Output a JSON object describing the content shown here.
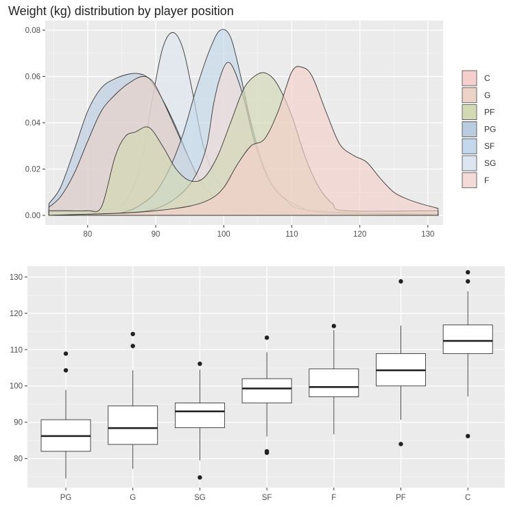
{
  "chart_data": [
    {
      "type": "density",
      "title": "Weight (kg) distribution by player position",
      "xlabel": "",
      "ylabel": "",
      "xlim": [
        74,
        132
      ],
      "ylim": [
        0,
        0.08
      ],
      "x_ticks": [
        80,
        90,
        100,
        110,
        120,
        130
      ],
      "y_ticks": [
        0.0,
        0.02,
        0.04,
        0.06,
        0.08
      ],
      "y_tick_labels": [
        "0.00",
        "0.02",
        "0.04",
        "0.06",
        "0.08"
      ],
      "grid": true,
      "legend_position": "right",
      "legend": [
        {
          "label": "C",
          "color": "#F4CFCB"
        },
        {
          "label": "G",
          "color": "#EBD3C7"
        },
        {
          "label": "PF",
          "color": "#D3D9B3"
        },
        {
          "label": "PG",
          "color": "#BACDE0"
        },
        {
          "label": "SF",
          "color": "#C3D8EA"
        },
        {
          "label": "SG",
          "color": "#DDE6F0"
        },
        {
          "label": "F",
          "color": "#F3DBD8"
        }
      ],
      "series": [
        {
          "label": "SG",
          "fill": "#DDE6F0",
          "points": [
            [
              74.3,
              0.0015
            ],
            [
              80,
              0.002
            ],
            [
              84,
              0.003
            ],
            [
              86,
              0.008
            ],
            [
              88,
              0.025
            ],
            [
              89.5,
              0.05
            ],
            [
              91,
              0.072
            ],
            [
              92.5,
              0.079
            ],
            [
              94,
              0.072
            ],
            [
              95.5,
              0.052
            ],
            [
              97,
              0.03
            ],
            [
              99,
              0.015
            ],
            [
              101,
              0.008
            ],
            [
              103,
              0.004
            ],
            [
              106,
              0.0015
            ],
            [
              131.5,
              0.0005
            ]
          ]
        },
        {
          "label": "PG",
          "fill": "#BACDE0",
          "points": [
            [
              74.3,
              0.005
            ],
            [
              76,
              0.012
            ],
            [
              78,
              0.028
            ],
            [
              80,
              0.045
            ],
            [
              82,
              0.055
            ],
            [
              84,
              0.059
            ],
            [
              86,
              0.061
            ],
            [
              87.5,
              0.0612
            ],
            [
              89,
              0.059
            ],
            [
              91,
              0.05
            ],
            [
              93,
              0.038
            ],
            [
              95,
              0.024
            ],
            [
              97,
              0.012
            ],
            [
              100,
              0.004
            ],
            [
              103,
              0.0015
            ],
            [
              131.5,
              0.0005
            ]
          ]
        },
        {
          "label": "G",
          "fill": "#EBD3C7",
          "points": [
            [
              74.3,
              0.0035
            ],
            [
              76,
              0.008
            ],
            [
              78,
              0.018
            ],
            [
              80,
              0.032
            ],
            [
              82,
              0.045
            ],
            [
              84,
              0.052
            ],
            [
              86,
              0.057
            ],
            [
              88,
              0.06
            ],
            [
              89.5,
              0.058
            ],
            [
              91,
              0.05
            ],
            [
              93,
              0.037
            ],
            [
              95,
              0.024
            ],
            [
              97,
              0.013
            ],
            [
              100,
              0.005
            ],
            [
              103,
              0.002
            ],
            [
              131.5,
              0.0005
            ]
          ]
        },
        {
          "label": "SF",
          "fill": "#C3D8EA",
          "points": [
            [
              74.3,
              0
            ],
            [
              83,
              0.0005
            ],
            [
              86,
              0.002
            ],
            [
              88,
              0.005
            ],
            [
              90,
              0.01
            ],
            [
              92,
              0.02
            ],
            [
              94,
              0.035
            ],
            [
              96,
              0.055
            ],
            [
              98,
              0.072
            ],
            [
              99.5,
              0.08
            ],
            [
              101,
              0.077
            ],
            [
              102.5,
              0.06
            ],
            [
              104,
              0.04
            ],
            [
              106,
              0.02
            ],
            [
              108,
              0.01
            ],
            [
              111,
              0.004
            ],
            [
              115,
              0.001
            ],
            [
              131.5,
              0
            ]
          ]
        },
        {
          "label": "F",
          "fill": "#F3DBD8",
          "points": [
            [
              74.3,
              0
            ],
            [
              85,
              0.0008
            ],
            [
              88,
              0.0015
            ],
            [
              91,
              0.004
            ],
            [
              94,
              0.01
            ],
            [
              96,
              0.018
            ],
            [
              97.5,
              0.03
            ],
            [
              98.5,
              0.048
            ],
            [
              99.5,
              0.06
            ],
            [
              100.5,
              0.066
            ],
            [
              101.5,
              0.063
            ],
            [
              103,
              0.05
            ],
            [
              104.5,
              0.032
            ],
            [
              106.5,
              0.016
            ],
            [
              109,
              0.007
            ],
            [
              113,
              0.002
            ],
            [
              131.5,
              0
            ]
          ]
        },
        {
          "label": "PF",
          "fill": "#D3D9B3",
          "points": [
            [
              74.3,
              0.002
            ],
            [
              77,
              0.002
            ],
            [
              80,
              0.002
            ],
            [
              82,
              0.0035
            ],
            [
              84,
              0.025
            ],
            [
              85.5,
              0.034
            ],
            [
              87,
              0.036
            ],
            [
              89,
              0.038
            ],
            [
              91,
              0.03
            ],
            [
              93,
              0.02
            ],
            [
              95,
              0.015
            ],
            [
              97,
              0.016
            ],
            [
              99,
              0.025
            ],
            [
              101,
              0.04
            ],
            [
              103,
              0.055
            ],
            [
              105,
              0.061
            ],
            [
              106.5,
              0.061
            ],
            [
              108,
              0.056
            ],
            [
              110,
              0.043
            ],
            [
              112,
              0.025
            ],
            [
              114,
              0.012
            ],
            [
              116,
              0.005
            ],
            [
              118,
              0.002
            ],
            [
              131.5,
              0.002
            ]
          ]
        },
        {
          "label": "C",
          "fill": "#F4CFCB",
          "points": [
            [
              74.3,
              0
            ],
            [
              80,
              0.0005
            ],
            [
              85,
              0.001
            ],
            [
              90,
              0.002
            ],
            [
              95,
              0.004
            ],
            [
              98,
              0.007
            ],
            [
              100,
              0.012
            ],
            [
              102,
              0.022
            ],
            [
              104,
              0.03
            ],
            [
              106,
              0.033
            ],
            [
              108,
              0.045
            ],
            [
              110,
              0.062
            ],
            [
              111.5,
              0.064
            ],
            [
              113,
              0.06
            ],
            [
              115,
              0.045
            ],
            [
              117,
              0.031
            ],
            [
              119,
              0.026
            ],
            [
              121,
              0.023
            ],
            [
              123,
              0.016
            ],
            [
              125,
              0.01
            ],
            [
              127,
              0.007
            ],
            [
              129,
              0.005
            ],
            [
              131.5,
              0.003
            ]
          ]
        }
      ]
    },
    {
      "type": "boxplot",
      "title": "",
      "xlabel": "",
      "ylabel": "",
      "ylim": [
        72,
        133
      ],
      "grid": true,
      "categories": [
        "PG",
        "G",
        "SG",
        "SF",
        "F",
        "PF",
        "C"
      ],
      "y_ticks": [
        80,
        90,
        100,
        110,
        120,
        130
      ],
      "y_tick_labels": [
        "80",
        "90",
        "100",
        "110",
        "120",
        "130"
      ],
      "boxes": [
        {
          "category": "PG",
          "min": 74.5,
          "q1": 82,
          "median": 86.2,
          "q3": 90.7,
          "max": 98.9,
          "outliers": [
            104.3,
            108.9
          ]
        },
        {
          "category": "G",
          "min": 77.2,
          "q1": 83.9,
          "median": 88.4,
          "q3": 94.5,
          "max": 104.3,
          "outliers": [
            111,
            114.3
          ]
        },
        {
          "category": "SG",
          "min": 79.5,
          "q1": 88.5,
          "median": 93,
          "q3": 95.3,
          "max": 104.5,
          "outliers": [
            74.8,
            106.1
          ]
        },
        {
          "category": "SF",
          "min": 86.1,
          "q1": 95.3,
          "median": 99.3,
          "q3": 102,
          "max": 109.3,
          "outliers": [
            81.6,
            82,
            113.3
          ]
        },
        {
          "category": "F",
          "min": 86.7,
          "q1": 97,
          "median": 99.7,
          "q3": 104.7,
          "max": 115.4,
          "outliers": [
            116.5
          ]
        },
        {
          "category": "PF",
          "min": 90.7,
          "q1": 100,
          "median": 104.3,
          "q3": 108.9,
          "max": 116.6,
          "outliers": [
            84,
            128.8
          ]
        },
        {
          "category": "C",
          "min": 97.1,
          "q1": 108.9,
          "median": 112.4,
          "q3": 116.8,
          "max": 126.1,
          "outliers": [
            86.2,
            128.8,
            131.3
          ]
        }
      ]
    }
  ]
}
